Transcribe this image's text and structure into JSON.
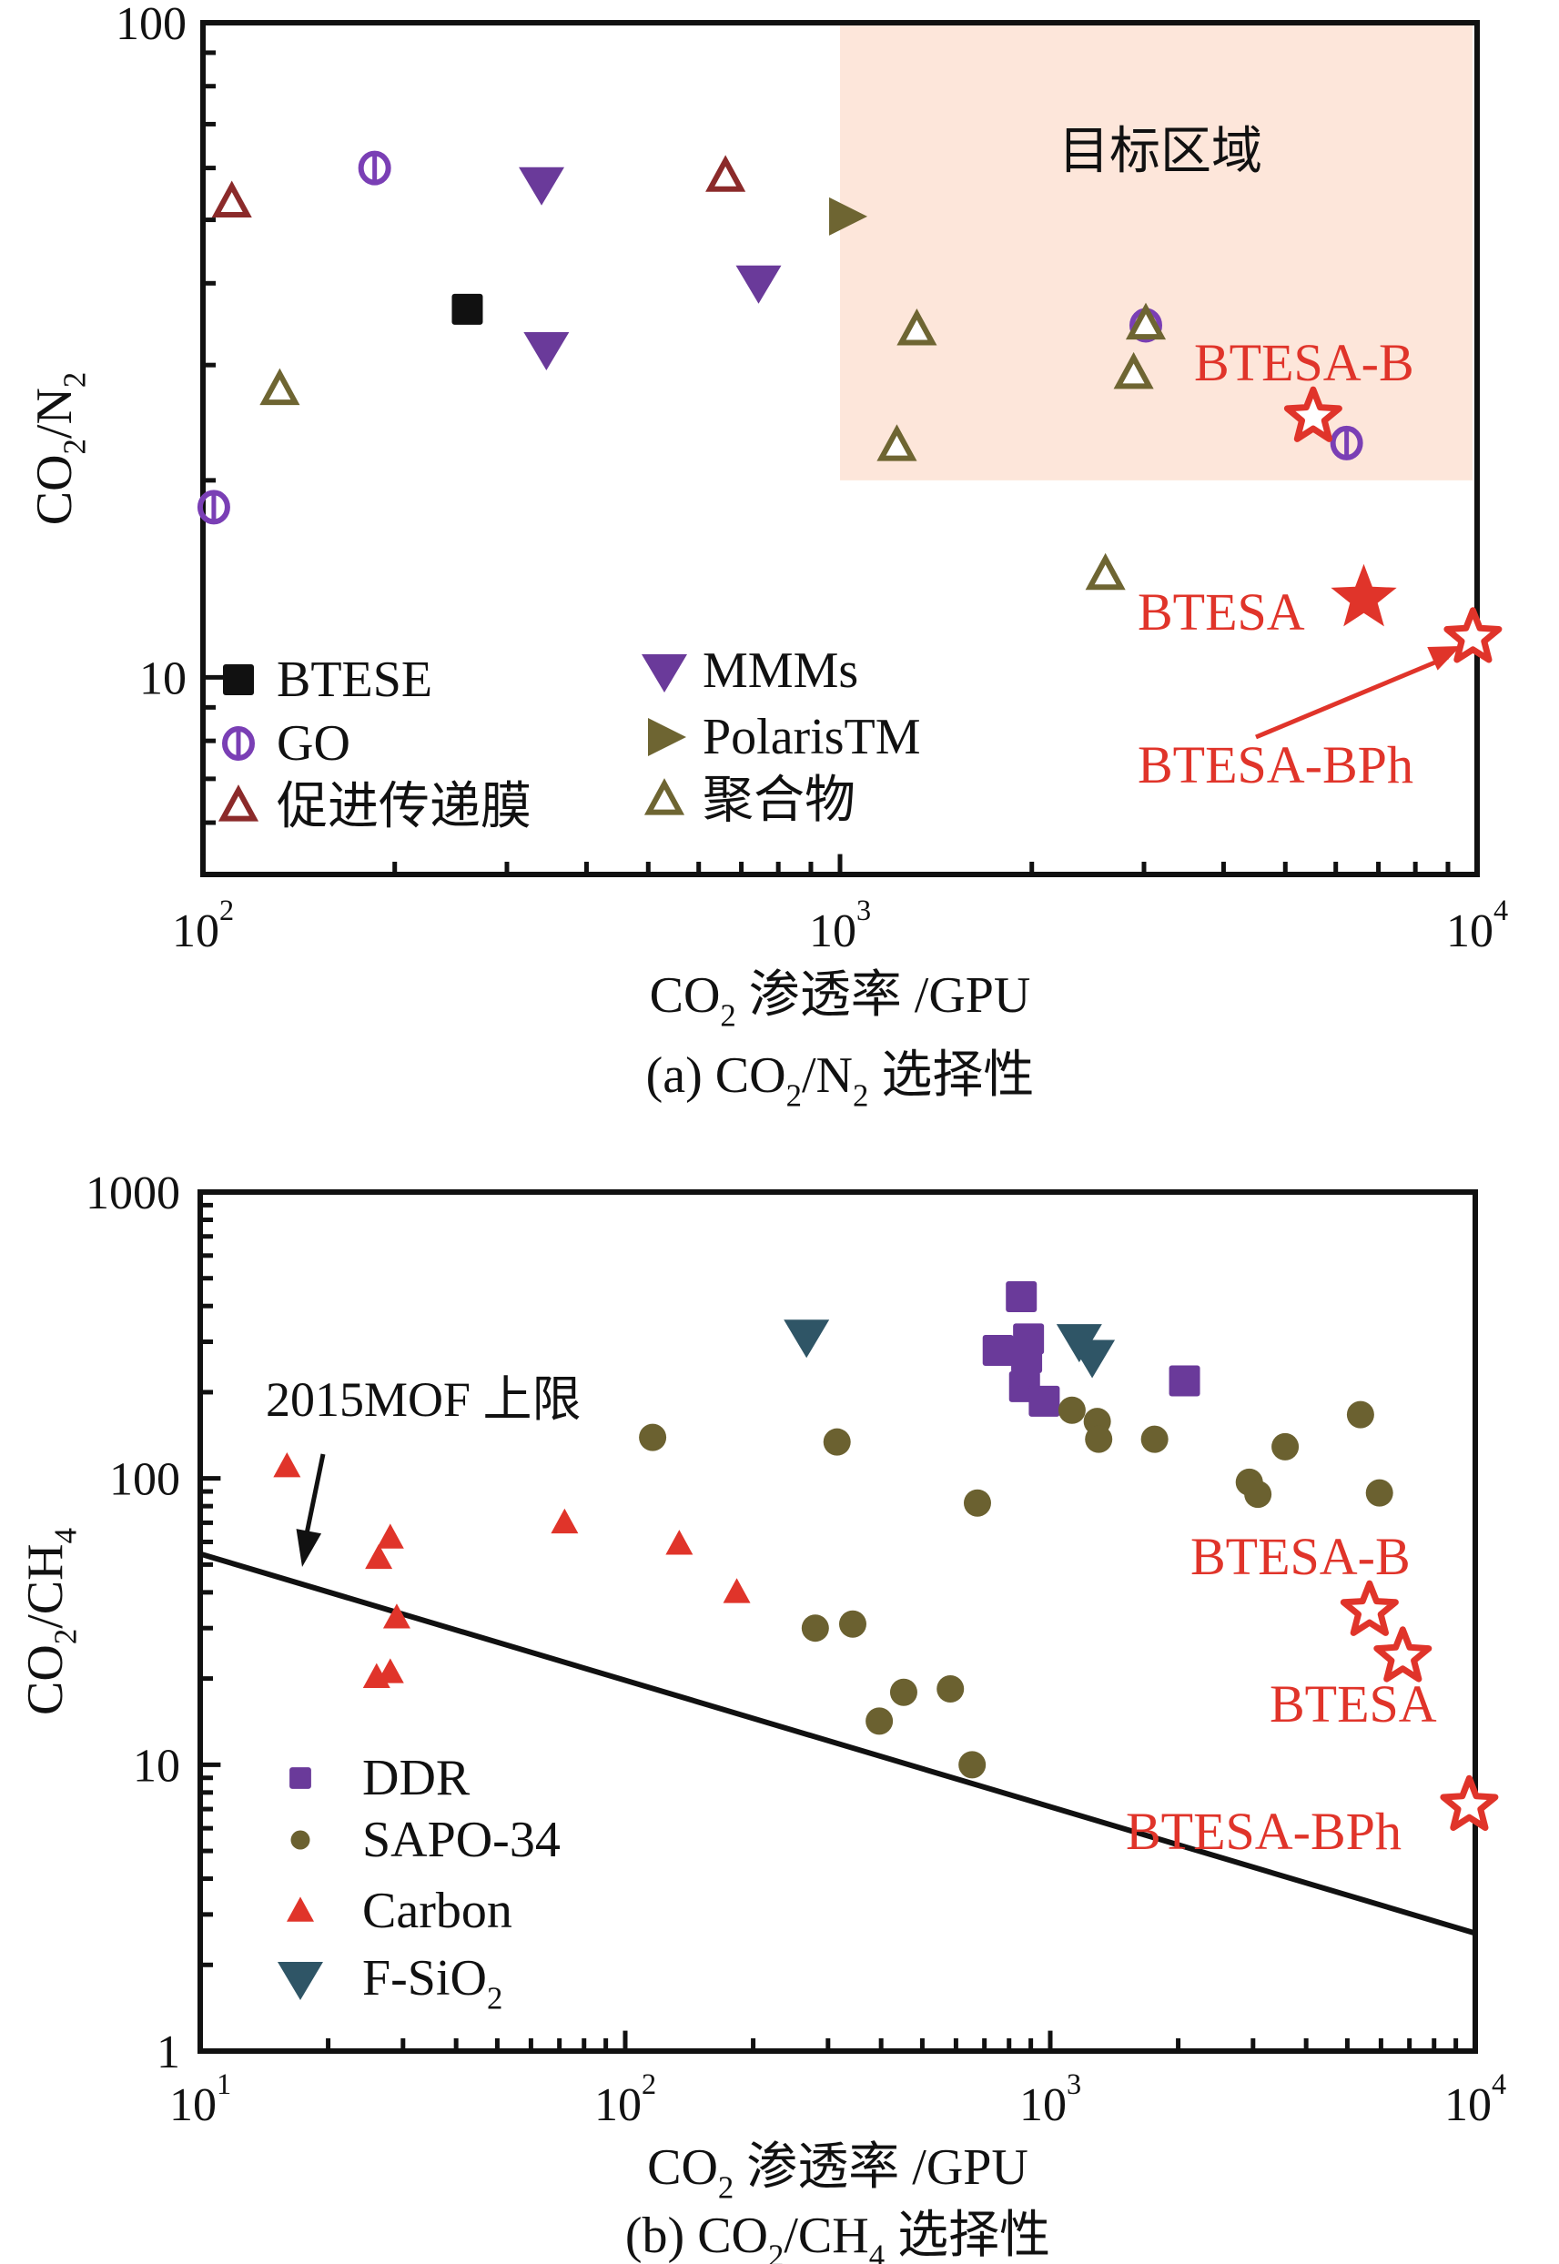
{
  "chart_data": [
    {
      "type": "scatter",
      "panel": "a",
      "caption": "(a) CO2/N2 选择性",
      "caption_parts": [
        "(a) CO",
        "2",
        "/N",
        "2",
        " 选择性"
      ],
      "xlabel": "CO2 渗透率 /GPU",
      "xlabel_parts": [
        "CO",
        "2",
        " 渗透率 /GPU"
      ],
      "ylabel": "CO2/N2",
      "ylabel_parts": [
        "CO",
        "2",
        "/N",
        "2"
      ],
      "xscale": "log",
      "yscale": "log",
      "xlim": [
        100,
        10000
      ],
      "ylim": [
        5,
        100
      ],
      "xticks": [
        {
          "base": "10",
          "exp": "2",
          "value": 100
        },
        {
          "base": "10",
          "exp": "3",
          "value": 1000
        },
        {
          "base": "10",
          "exp": "4",
          "value": 10000
        }
      ],
      "yticks": [
        {
          "label": "10",
          "value": 10
        },
        {
          "label": "100",
          "value": 100
        }
      ],
      "target_region": {
        "label": "目标区域",
        "x_range": [
          1000,
          10000
        ],
        "y_range": [
          20,
          100
        ],
        "color": "#fde6da"
      },
      "legend": {
        "placement": "bottom-left",
        "columns": 2
      },
      "series": [
        {
          "name": "BTESE",
          "marker": "square-filled",
          "color": "#111111",
          "points": [
            [
              260,
              36.5
            ]
          ]
        },
        {
          "name": "GO",
          "marker": "circle-bar",
          "color": "#7a3fb5",
          "points": [
            [
              186,
              60
            ],
            [
              104,
              18.2
            ],
            [
              6240,
              22.8
            ],
            [
              3020,
              34.5
            ]
          ]
        },
        {
          "name": "促进传递膜",
          "marker": "triangle-up-open",
          "color": "#8b2a2a",
          "points": [
            [
              111,
              53
            ],
            [
              661,
              58
            ]
          ]
        },
        {
          "name": "MMMs",
          "marker": "triangle-down-filled",
          "color": "#6a3a9a",
          "points": [
            [
              340,
              56.8
            ],
            [
              346,
              31.8
            ],
            [
              745,
              40.2
            ]
          ]
        },
        {
          "name": "PolarisTM",
          "marker": "triangle-right-filled",
          "color": "#6e6532",
          "points": [
            [
              1020,
              50.6
            ]
          ]
        },
        {
          "name": "聚合物",
          "marker": "triangle-up-open",
          "color": "#6e6532",
          "points": [
            [
              132,
              27.4
            ],
            [
              1320,
              33.8
            ],
            [
              1228,
              22.5
            ],
            [
              3020,
              34.5
            ],
            [
              2890,
              29
            ],
            [
              2610,
              14.3
            ]
          ]
        }
      ],
      "highlights": [
        {
          "name": "BTESA-B",
          "marker": "star-open",
          "color": "#e0342a",
          "point": [
            5530,
            25.0
          ]
        },
        {
          "name": "BTESA",
          "marker": "star-filled",
          "color": "#e0342a",
          "point": [
            6640,
            13.2
          ]
        },
        {
          "name": "BTESA-BPh",
          "marker": "star-open",
          "color": "#e0342a",
          "point": [
            9850,
            11.5
          ],
          "arrow": true
        }
      ]
    },
    {
      "type": "scatter",
      "panel": "b",
      "caption": "(b) CO2/CH4 选择性",
      "caption_parts": [
        "(b) CO",
        "2",
        "/CH",
        "4",
        " 选择性"
      ],
      "xlabel": "CO2 渗透率 /GPU",
      "xlabel_parts": [
        "CO",
        "2",
        " 渗透率 /GPU"
      ],
      "ylabel": "CO2/CH4",
      "ylabel_parts": [
        "CO",
        "2",
        "/CH",
        "4"
      ],
      "xscale": "log",
      "yscale": "log",
      "xlim": [
        10,
        10000
      ],
      "ylim": [
        1,
        1000
      ],
      "xticks": [
        {
          "base": "10",
          "exp": "1",
          "value": 10
        },
        {
          "base": "10",
          "exp": "2",
          "value": 100
        },
        {
          "base": "10",
          "exp": "3",
          "value": 1000
        },
        {
          "base": "10",
          "exp": "4",
          "value": 10000
        }
      ],
      "yticks": [
        {
          "label": "1",
          "value": 1
        },
        {
          "label": "10",
          "value": 10
        },
        {
          "label": "100",
          "value": 100
        },
        {
          "label": "1000",
          "value": 1000
        }
      ],
      "upper_bound": {
        "label": "2015MOF 上限",
        "points": [
          [
            10,
            54.5
          ],
          [
            10000,
            2.58
          ]
        ]
      },
      "legend": {
        "placement": "bottom-left",
        "columns": 1
      },
      "series": [
        {
          "name": "DDR",
          "marker": "square-filled",
          "color": "#6a3a9a",
          "points": [
            [
              855,
              431
            ],
            [
              889,
              307
            ],
            [
              754,
              280
            ],
            [
              880,
              264
            ],
            [
              870,
              209
            ],
            [
              968,
              186
            ],
            [
              2070,
              219
            ]
          ]
        },
        {
          "name": "SAPO-34",
          "marker": "circle-filled",
          "color": "#6b6130",
          "points": [
            [
              116,
              139
            ],
            [
              315,
              134
            ],
            [
              674,
              82
            ],
            [
              1125,
              173
            ],
            [
              1290,
              158
            ],
            [
              1300,
              137
            ],
            [
              1760,
              137
            ],
            [
              3570,
              129
            ],
            [
              2940,
              97
            ],
            [
              3080,
              88
            ],
            [
              5370,
              167
            ],
            [
              5950,
              89
            ],
            [
              280,
              30
            ],
            [
              343,
              31
            ],
            [
              452,
              17.9
            ],
            [
              396,
              14.2
            ],
            [
              582,
              18.4
            ],
            [
              655,
              10
            ]
          ]
        },
        {
          "name": "Carbon",
          "marker": "triangle-up-filled",
          "color": "#e0342a",
          "points": [
            [
              16,
              110
            ],
            [
              28,
              62
            ],
            [
              26.3,
              52.6
            ],
            [
              72,
              70
            ],
            [
              134,
              59
            ],
            [
              183,
              40
            ],
            [
              29,
              32.6
            ],
            [
              26,
              20.2
            ],
            [
              28,
              21
            ]
          ]
        },
        {
          "name": "F-SiO2",
          "legend_parts": [
            "F-SiO",
            "2"
          ],
          "marker": "triangle-down-filled",
          "color": "#2f5566",
          "points": [
            [
              267,
              314
            ],
            [
              1170,
              303
            ],
            [
              1255,
              267
            ]
          ]
        }
      ],
      "highlights": [
        {
          "name": "BTESA-B",
          "marker": "star-open",
          "color": "#e0342a",
          "point": [
            5640,
            34.5
          ]
        },
        {
          "name": "BTESA",
          "marker": "star-open",
          "color": "#e0342a",
          "point": [
            6750,
            23.8
          ]
        },
        {
          "name": "BTESA-BPh",
          "marker": "star-open",
          "color": "#e0342a",
          "point": [
            9680,
            7.2
          ]
        }
      ]
    }
  ]
}
